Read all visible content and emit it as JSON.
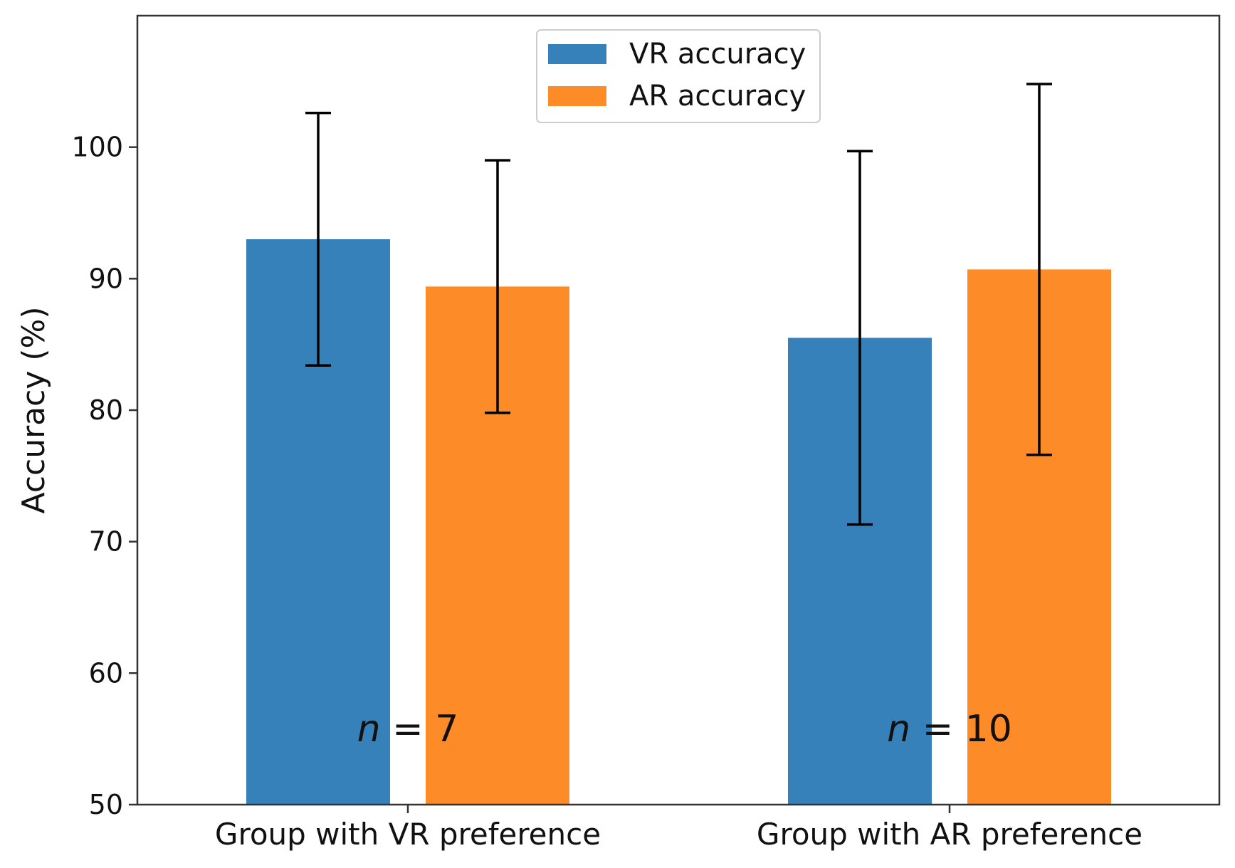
{
  "chart_data": {
    "type": "bar",
    "title": "",
    "xlabel": "",
    "ylabel": "Accuracy (%)",
    "ylim": [
      50,
      110
    ],
    "yticks": [
      50,
      60,
      70,
      80,
      90,
      100
    ],
    "categories": [
      "Group with VR preference",
      "Group with AR preference"
    ],
    "series": [
      {
        "name": "VR accuracy",
        "color": "#3681ba",
        "values": [
          93.0,
          85.5
        ],
        "errors": [
          9.6,
          14.2
        ]
      },
      {
        "name": "AR accuracy",
        "color": "#fd8b27",
        "values": [
          89.4,
          90.7
        ],
        "errors": [
          9.6,
          14.1
        ]
      }
    ],
    "annotations": [
      {
        "prefix": "n",
        "text": " = 7",
        "category": 0
      },
      {
        "prefix": "n",
        "text": " = 10",
        "category": 1
      }
    ],
    "legend": "top-center",
    "grid": false
  }
}
